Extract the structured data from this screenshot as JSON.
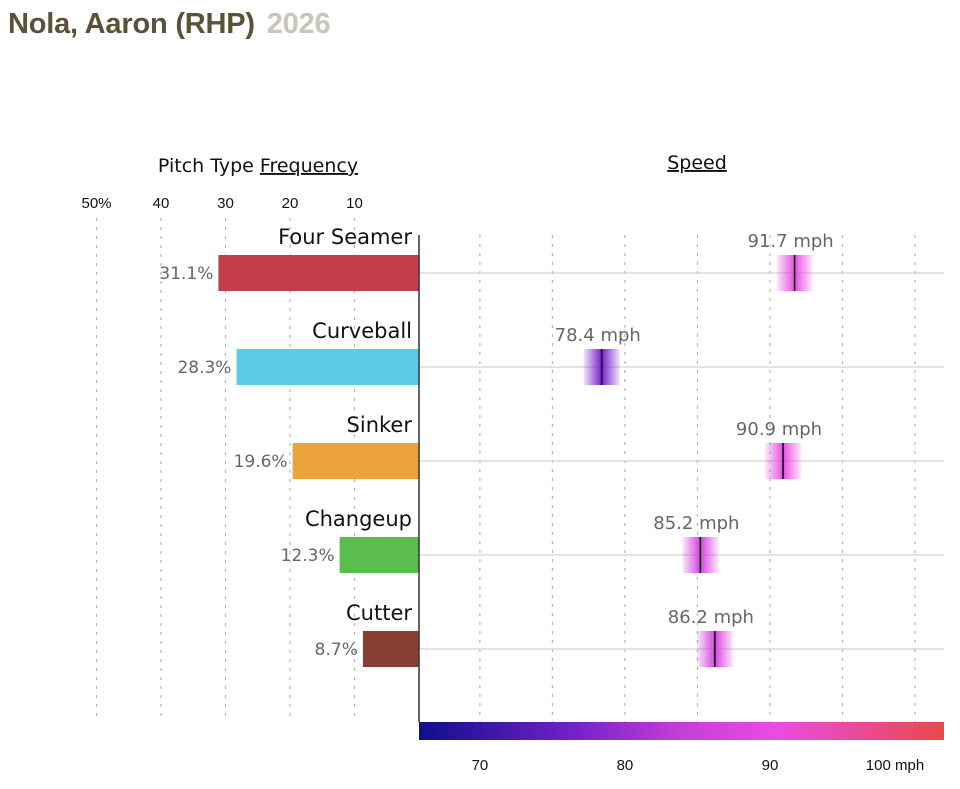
{
  "title": {
    "name": "Nola, Aaron (RHP)",
    "year": "2026"
  },
  "chart_data": {
    "type": "bar",
    "frequency_header": {
      "prefix": "Pitch Type ",
      "underlined": "Frequency"
    },
    "speed_header": "Speed",
    "categories": [
      "Four Seamer",
      "Curveball",
      "Sinker",
      "Changeup",
      "Cutter"
    ],
    "frequency": {
      "values": [
        31.1,
        28.3,
        19.6,
        12.3,
        8.7
      ],
      "labels": [
        "31.1%",
        "28.3%",
        "19.6%",
        "12.3%",
        "8.7%"
      ],
      "colors": [
        "#c33d4b",
        "#5ccde6",
        "#eda33b",
        "#5bbd4d",
        "#854031"
      ],
      "xlim": [
        0,
        50
      ],
      "ticks": [
        50,
        40,
        30,
        20,
        10
      ],
      "tick_labels": [
        "50%",
        "40",
        "30",
        "20",
        "10"
      ]
    },
    "speed": {
      "values": [
        91.7,
        78.4,
        90.9,
        85.2,
        86.2
      ],
      "labels": [
        "91.7 mph",
        "78.4 mph",
        "90.9 mph",
        "85.2 mph",
        "86.2 mph"
      ],
      "xlim": [
        65.8,
        102
      ],
      "ticks": [
        70,
        75,
        80,
        85,
        90,
        95,
        100
      ],
      "tick_labels": [
        "70",
        "80",
        "90",
        "100 mph"
      ],
      "tick_label_values": [
        70,
        80,
        90,
        100
      ]
    },
    "colorscale": [
      "#0f0f8a",
      "#7622c8",
      "#e94ce3",
      "#e84a4a"
    ]
  }
}
